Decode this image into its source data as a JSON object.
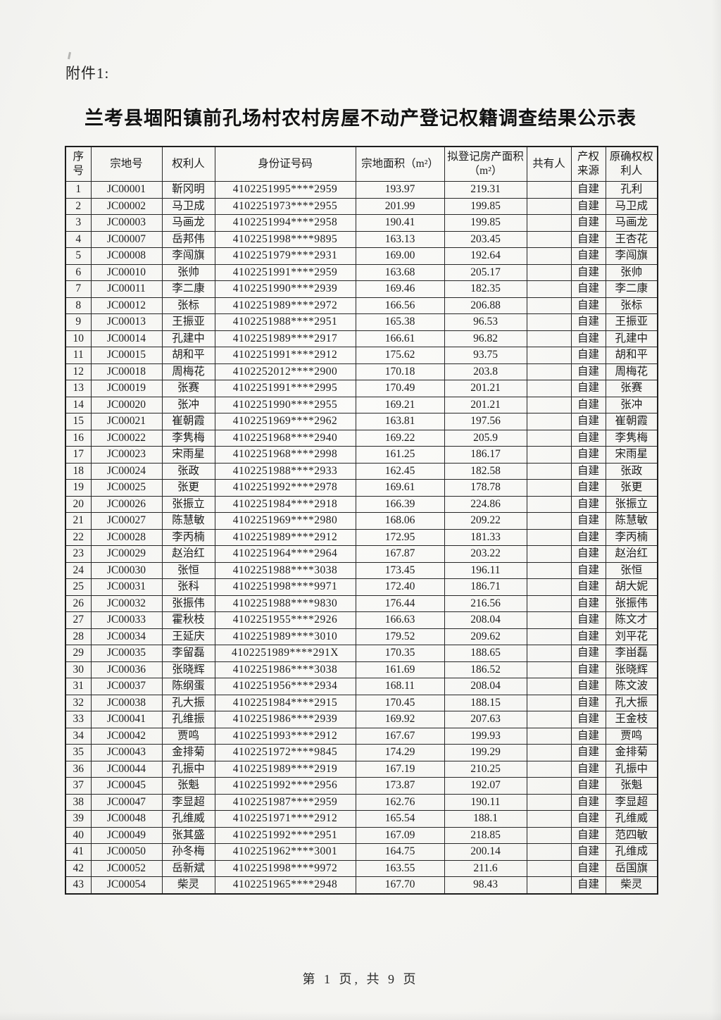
{
  "page": {
    "attachment_label": "附件1:",
    "title": "兰考县堌阳镇前孔场村农村房屋不动产登记权籍调查结果公示表",
    "footer": "第 1 页, 共 9 页"
  },
  "table": {
    "headers": [
      "序号",
      "宗地号",
      "权利人",
      "身份证号码",
      "宗地面积（m²）",
      "拟登记房产面积（m²）",
      "共有人",
      "产权来源",
      "原确权权利人"
    ],
    "rows": [
      [
        "1",
        "JC00001",
        "靳冈明",
        "4102251995****2959",
        "193.97",
        "219.31",
        "",
        "自建",
        "孔利"
      ],
      [
        "2",
        "JC00002",
        "马卫成",
        "4102251973****2955",
        "201.99",
        "199.85",
        "",
        "自建",
        "马卫成"
      ],
      [
        "3",
        "JC00003",
        "马画龙",
        "4102251994****2958",
        "190.41",
        "199.85",
        "",
        "自建",
        "马画龙"
      ],
      [
        "4",
        "JC00007",
        "岳邦伟",
        "4102251998****9895",
        "163.13",
        "203.45",
        "",
        "自建",
        "王杏花"
      ],
      [
        "5",
        "JC00008",
        "李闯旗",
        "4102251979****2931",
        "169.00",
        "192.64",
        "",
        "自建",
        "李闯旗"
      ],
      [
        "6",
        "JC00010",
        "张帅",
        "4102251991****2959",
        "163.68",
        "205.17",
        "",
        "自建",
        "张帅"
      ],
      [
        "7",
        "JC00011",
        "李二康",
        "4102251990****2939",
        "169.46",
        "182.35",
        "",
        "自建",
        "李二康"
      ],
      [
        "8",
        "JC00012",
        "张标",
        "4102251989****2972",
        "166.56",
        "206.88",
        "",
        "自建",
        "张标"
      ],
      [
        "9",
        "JC00013",
        "王振亚",
        "4102251988****2951",
        "165.38",
        "96.53",
        "",
        "自建",
        "王振亚"
      ],
      [
        "10",
        "JC00014",
        "孔建中",
        "4102251989****2917",
        "166.61",
        "96.82",
        "",
        "自建",
        "孔建中"
      ],
      [
        "11",
        "JC00015",
        "胡和平",
        "4102251991****2912",
        "175.62",
        "93.75",
        "",
        "自建",
        "胡和平"
      ],
      [
        "12",
        "JC00018",
        "周梅花",
        "4102252012****2900",
        "170.18",
        "203.8",
        "",
        "自建",
        "周梅花"
      ],
      [
        "13",
        "JC00019",
        "张赛",
        "4102251991****2995",
        "170.49",
        "201.21",
        "",
        "自建",
        "张赛"
      ],
      [
        "14",
        "JC00020",
        "张冲",
        "4102251990****2955",
        "169.21",
        "201.21",
        "",
        "自建",
        "张冲"
      ],
      [
        "15",
        "JC00021",
        "崔朝霞",
        "4102251969****2962",
        "163.81",
        "197.56",
        "",
        "自建",
        "崔朝霞"
      ],
      [
        "16",
        "JC00022",
        "李隽梅",
        "4102251968****2940",
        "169.22",
        "205.9",
        "",
        "自建",
        "李隽梅"
      ],
      [
        "17",
        "JC00023",
        "宋雨星",
        "4102251968****2998",
        "161.25",
        "186.17",
        "",
        "自建",
        "宋雨星"
      ],
      [
        "18",
        "JC00024",
        "张政",
        "4102251988****2933",
        "162.45",
        "182.58",
        "",
        "自建",
        "张政"
      ],
      [
        "19",
        "JC00025",
        "张更",
        "4102251992****2978",
        "169.61",
        "178.78",
        "",
        "自建",
        "张更"
      ],
      [
        "20",
        "JC00026",
        "张振立",
        "4102251984****2918",
        "166.39",
        "224.86",
        "",
        "自建",
        "张振立"
      ],
      [
        "21",
        "JC00027",
        "陈慧敏",
        "4102251969****2980",
        "168.06",
        "209.22",
        "",
        "自建",
        "陈慧敏"
      ],
      [
        "22",
        "JC00028",
        "李丙楠",
        "4102251989****2912",
        "172.95",
        "181.33",
        "",
        "自建",
        "李丙楠"
      ],
      [
        "23",
        "JC00029",
        "赵治红",
        "4102251964****2964",
        "167.87",
        "203.22",
        "",
        "自建",
        "赵治红"
      ],
      [
        "24",
        "JC00030",
        "张恒",
        "4102251988****3038",
        "173.45",
        "196.11",
        "",
        "自建",
        "张恒"
      ],
      [
        "25",
        "JC00031",
        "张科",
        "4102251998****9971",
        "172.40",
        "186.71",
        "",
        "自建",
        "胡大妮"
      ],
      [
        "26",
        "JC00032",
        "张振伟",
        "4102251988****9830",
        "176.44",
        "216.56",
        "",
        "自建",
        "张振伟"
      ],
      [
        "27",
        "JC00033",
        "霍秋枝",
        "4102251955****2926",
        "166.63",
        "208.04",
        "",
        "自建",
        "陈文才"
      ],
      [
        "28",
        "JC00034",
        "王延庆",
        "4102251989****3010",
        "179.52",
        "209.62",
        "",
        "自建",
        "刘平花"
      ],
      [
        "29",
        "JC00035",
        "李留磊",
        "4102251989****291X",
        "170.35",
        "188.65",
        "",
        "自建",
        "李畄磊"
      ],
      [
        "30",
        "JC00036",
        "张晓辉",
        "4102251986****3038",
        "161.69",
        "186.52",
        "",
        "自建",
        "张晓辉"
      ],
      [
        "31",
        "JC00037",
        "陈纲蛋",
        "4102251956****2934",
        "168.11",
        "208.04",
        "",
        "自建",
        "陈文波"
      ],
      [
        "32",
        "JC00038",
        "孔大振",
        "4102251984****2915",
        "170.45",
        "188.15",
        "",
        "自建",
        "孔大振"
      ],
      [
        "33",
        "JC00041",
        "孔维振",
        "4102251986****2939",
        "169.92",
        "207.63",
        "",
        "自建",
        "王金枝"
      ],
      [
        "34",
        "JC00042",
        "贾鸣",
        "4102251993****2912",
        "167.67",
        "199.93",
        "",
        "自建",
        "贾鸣"
      ],
      [
        "35",
        "JC00043",
        "金排菊",
        "4102251972****9845",
        "174.29",
        "199.29",
        "",
        "自建",
        "金排菊"
      ],
      [
        "36",
        "JC00044",
        "孔振中",
        "4102251989****2919",
        "167.19",
        "210.25",
        "",
        "自建",
        "孔振中"
      ],
      [
        "37",
        "JC00045",
        "张魁",
        "4102251992****2956",
        "173.87",
        "192.07",
        "",
        "自建",
        "张魁"
      ],
      [
        "38",
        "JC00047",
        "李显超",
        "4102251987****2959",
        "162.76",
        "190.11",
        "",
        "自建",
        "李显超"
      ],
      [
        "39",
        "JC00048",
        "孔维威",
        "4102251971****2912",
        "165.54",
        "188.1",
        "",
        "自建",
        "孔维威"
      ],
      [
        "40",
        "JC00049",
        "张其盛",
        "4102251992****2951",
        "167.09",
        "218.85",
        "",
        "自建",
        "范四敏"
      ],
      [
        "41",
        "JC00050",
        "孙冬梅",
        "4102251962****3001",
        "164.75",
        "200.14",
        "",
        "自建",
        "孔维成"
      ],
      [
        "42",
        "JC00052",
        "岳新斌",
        "4102251998****9972",
        "163.55",
        "211.6",
        "",
        "自建",
        "岳国旗"
      ],
      [
        "43",
        "JC00054",
        "柴灵",
        "4102251965****2948",
        "167.70",
        "98.43",
        "",
        "自建",
        "柴灵"
      ]
    ]
  }
}
